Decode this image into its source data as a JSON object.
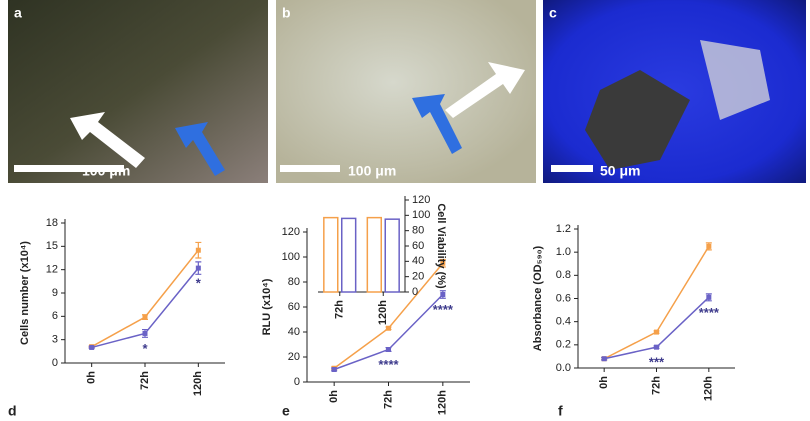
{
  "panels": [
    {
      "label": "a",
      "scale_bar": "100 μm"
    },
    {
      "label": "b",
      "scale_bar": "100 μm"
    },
    {
      "label": "c",
      "scale_bar": "50 μm"
    }
  ],
  "chart_data": [
    {
      "type": "line",
      "label": "d",
      "ylabel": "Cells number (x10⁴)",
      "categories": [
        "0h",
        "72h",
        "120h"
      ],
      "ylim": [
        0,
        18
      ],
      "yticks": [
        0,
        3,
        6,
        9,
        12,
        15,
        18
      ],
      "series": [
        {
          "color": "#f5a04a",
          "values": [
            2.1,
            5.9,
            14.5
          ],
          "errors": [
            0.1,
            0.3,
            1.0
          ]
        },
        {
          "color": "#6a62c6",
          "values": [
            2.0,
            3.8,
            12.2
          ],
          "errors": [
            0.1,
            0.5,
            0.8
          ]
        }
      ],
      "annotations": [
        {
          "category": "72h",
          "text": "*"
        },
        {
          "category": "120h",
          "text": "*"
        }
      ]
    },
    {
      "type": "line",
      "label": "e",
      "ylabel": "RLU (x10⁴)",
      "categories": [
        "0h",
        "72h",
        "120h"
      ],
      "ylim": [
        0,
        120
      ],
      "yticks": [
        0,
        20,
        40,
        60,
        80,
        100,
        120
      ],
      "series": [
        {
          "color": "#f5a04a",
          "values": [
            11,
            43,
            95
          ],
          "errors": [
            1,
            1,
            3
          ]
        },
        {
          "color": "#6a62c6",
          "values": [
            10,
            26,
            70
          ],
          "errors": [
            1,
            1.5,
            3
          ]
        }
      ],
      "annotations": [
        {
          "category": "72h",
          "text": "****"
        },
        {
          "category": "120h",
          "text": "****"
        }
      ]
    },
    {
      "type": "bar",
      "ylabel": "Cell Viability (%)",
      "yaxis": "right",
      "categories": [
        "72h",
        "120h"
      ],
      "ylim": [
        0,
        120
      ],
      "yticks": [
        0,
        20,
        40,
        60,
        80,
        100,
        120
      ],
      "series": [
        {
          "color": "#f5a04a",
          "values": [
            97,
            97
          ]
        },
        {
          "color": "#6a62c6",
          "values": [
            96,
            95
          ]
        }
      ]
    },
    {
      "type": "line",
      "label": "f",
      "ylabel": "Absorbance (OD₅₉₀)",
      "categories": [
        "0h",
        "72h",
        "120h"
      ],
      "ylim": [
        0,
        1.2
      ],
      "yticks": [
        {
          "value": 0,
          "label": "0.0"
        },
        0.2,
        0.4,
        0.6,
        0.8,
        {
          "value": 1,
          "label": "1.0"
        },
        1.2
      ],
      "series": [
        {
          "color": "#f5a04a",
          "values": [
            0.08,
            0.31,
            1.05
          ],
          "errors": [
            0.01,
            0.01,
            0.03
          ]
        },
        {
          "color": "#6a62c6",
          "values": [
            0.08,
            0.18,
            0.61
          ],
          "errors": [
            0.01,
            0.01,
            0.03
          ]
        }
      ],
      "annotations": [
        {
          "category": "72h",
          "text": "***"
        },
        {
          "category": "120h",
          "text": "****"
        }
      ]
    }
  ]
}
